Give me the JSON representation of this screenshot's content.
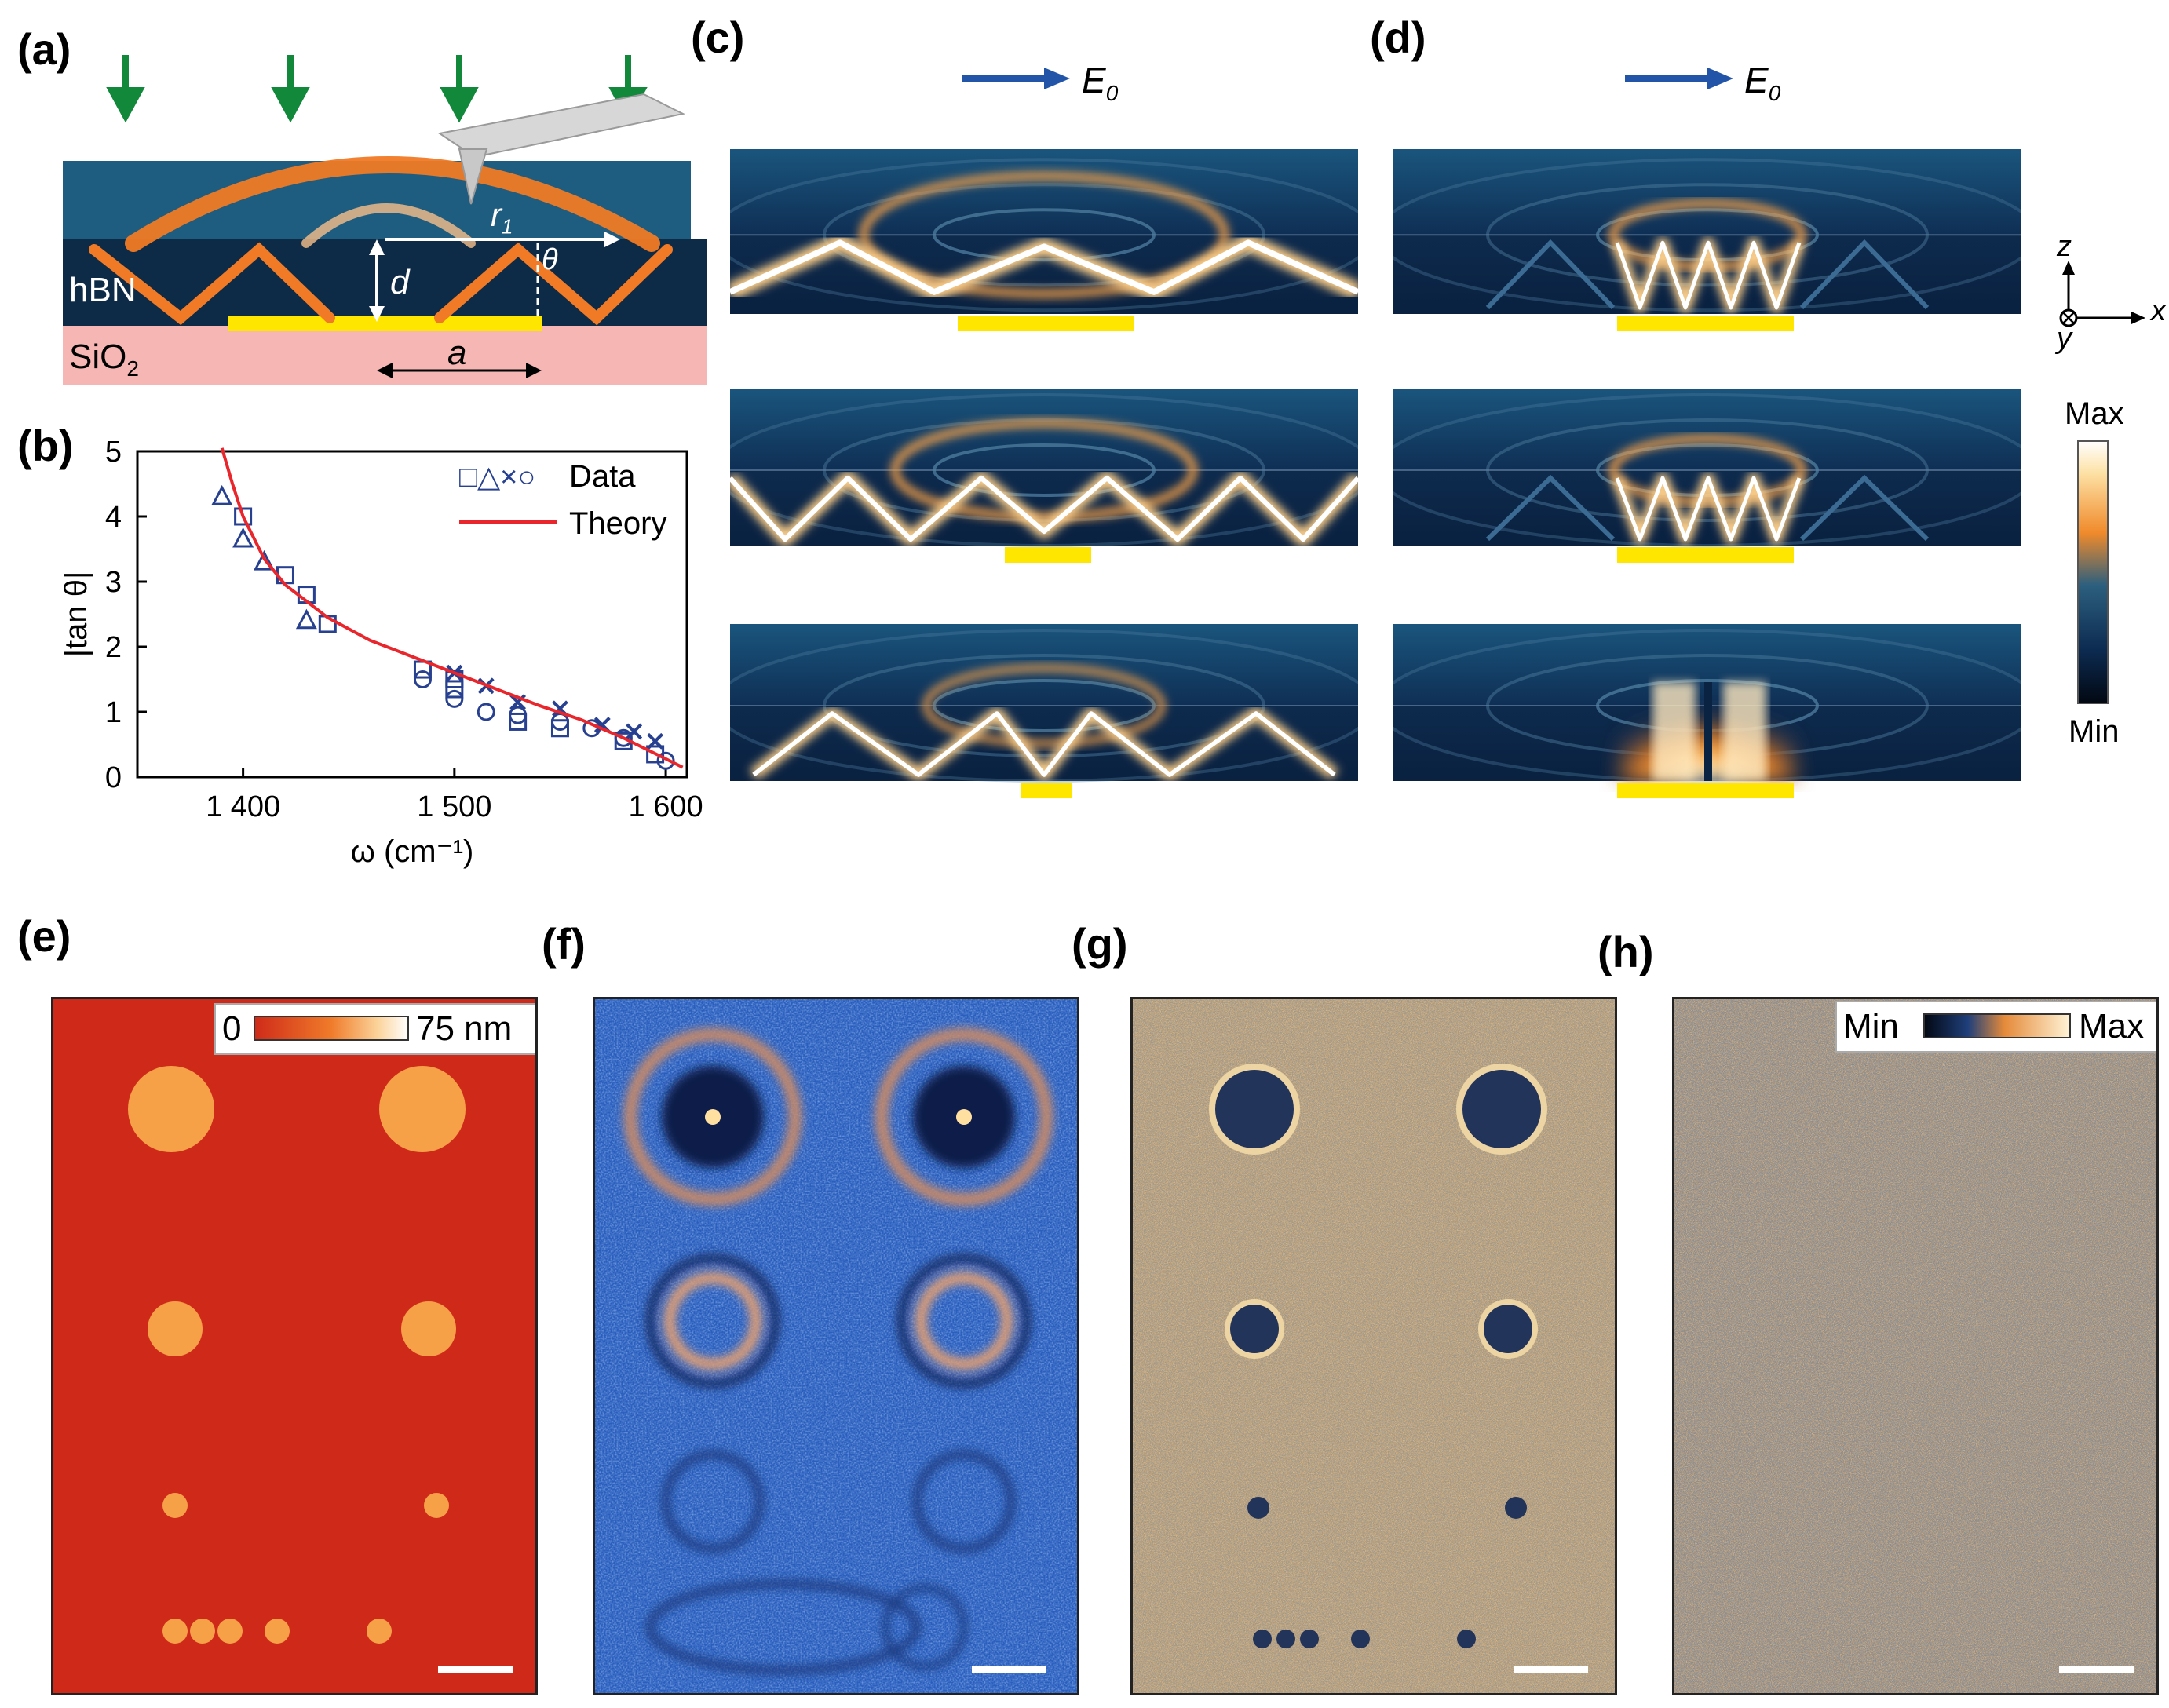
{
  "panels": {
    "a": {
      "label": "(a)",
      "hbn": "hBN",
      "sio2_main": "SiO",
      "sio2_sub": "2",
      "r_main": "r",
      "r_sub": "1",
      "theta": "θ",
      "d": "d",
      "a": "a"
    },
    "b": {
      "label": "(b)"
    },
    "c": {
      "label": "(c)",
      "field_main": "E",
      "field_sub": "0"
    },
    "d": {
      "label": "(d)",
      "field_main": "E",
      "field_sub": "0"
    },
    "e": {
      "label": "(e)",
      "scale_min": "0",
      "scale_max": "75 nm"
    },
    "f": {
      "label": "(f)"
    },
    "g": {
      "label": "(g)"
    },
    "h": {
      "label": "(h)",
      "scale_min": "Min",
      "scale_max": "Max"
    }
  },
  "colorbar": {
    "max": "Max",
    "min": "Min"
  },
  "axes_triad": {
    "z": "z",
    "x": "x",
    "y": "y"
  },
  "colors": {
    "hbn": "#1e5b7c",
    "hbn_dark": "#0d2a45",
    "sio2": "#f6b7b4",
    "gold": "#ffe600",
    "arrow_green": "#12893a",
    "e_arrow": "#2255a8",
    "theory": "#e8262c",
    "data": "#27408f",
    "afm_bg": "#cf2a19",
    "afm_dot": "#f6a048",
    "nearfield_bg": "#2a5ebd"
  },
  "chart_data": {
    "type": "scatter",
    "title": "",
    "xlabel": "ω (cm⁻¹)",
    "ylabel": "|tan θ|",
    "xlim": [
      1350,
      1610
    ],
    "ylim": [
      0,
      5
    ],
    "xticks": [
      1400,
      1500,
      1600
    ],
    "xtick_labels": [
      "1 400",
      "1 500",
      "1 600"
    ],
    "yticks": [
      0,
      1,
      2,
      3,
      4,
      5
    ],
    "ytick_labels": [
      "0",
      "1",
      "2",
      "3",
      "4",
      "5"
    ],
    "legend": {
      "position": "top-right",
      "entries": [
        {
          "markers": "□△×○",
          "label": "Data"
        },
        {
          "line": "red",
          "label": "Theory"
        }
      ]
    },
    "series": [
      {
        "marker": "square",
        "points": [
          [
            1400,
            4.0
          ],
          [
            1420,
            3.1
          ],
          [
            1430,
            2.8
          ],
          [
            1440,
            2.35
          ],
          [
            1485,
            1.65
          ],
          [
            1500,
            1.5
          ],
          [
            1500,
            1.35
          ],
          [
            1530,
            0.85
          ],
          [
            1550,
            0.75
          ],
          [
            1580,
            0.55
          ],
          [
            1595,
            0.35
          ]
        ]
      },
      {
        "marker": "triangle",
        "points": [
          [
            1390,
            4.3
          ],
          [
            1400,
            3.65
          ],
          [
            1410,
            3.3
          ],
          [
            1430,
            2.4
          ]
        ]
      },
      {
        "marker": "x",
        "points": [
          [
            1500,
            1.6
          ],
          [
            1515,
            1.4
          ],
          [
            1530,
            1.15
          ],
          [
            1550,
            1.05
          ],
          [
            1570,
            0.8
          ],
          [
            1585,
            0.7
          ],
          [
            1595,
            0.55
          ]
        ]
      },
      {
        "marker": "circle",
        "points": [
          [
            1485,
            1.5
          ],
          [
            1500,
            1.2
          ],
          [
            1515,
            1.0
          ],
          [
            1530,
            0.95
          ],
          [
            1550,
            0.85
          ],
          [
            1565,
            0.75
          ],
          [
            1580,
            0.6
          ],
          [
            1600,
            0.25
          ]
        ]
      },
      {
        "name": "Theory",
        "type": "line",
        "points": [
          [
            1390,
            5.1
          ],
          [
            1395,
            4.5
          ],
          [
            1400,
            4.0
          ],
          [
            1410,
            3.35
          ],
          [
            1420,
            2.95
          ],
          [
            1440,
            2.45
          ],
          [
            1460,
            2.1
          ],
          [
            1480,
            1.85
          ],
          [
            1500,
            1.6
          ],
          [
            1520,
            1.35
          ],
          [
            1540,
            1.1
          ],
          [
            1560,
            0.88
          ],
          [
            1580,
            0.6
          ],
          [
            1600,
            0.28
          ],
          [
            1608,
            0.15
          ]
        ]
      }
    ]
  }
}
